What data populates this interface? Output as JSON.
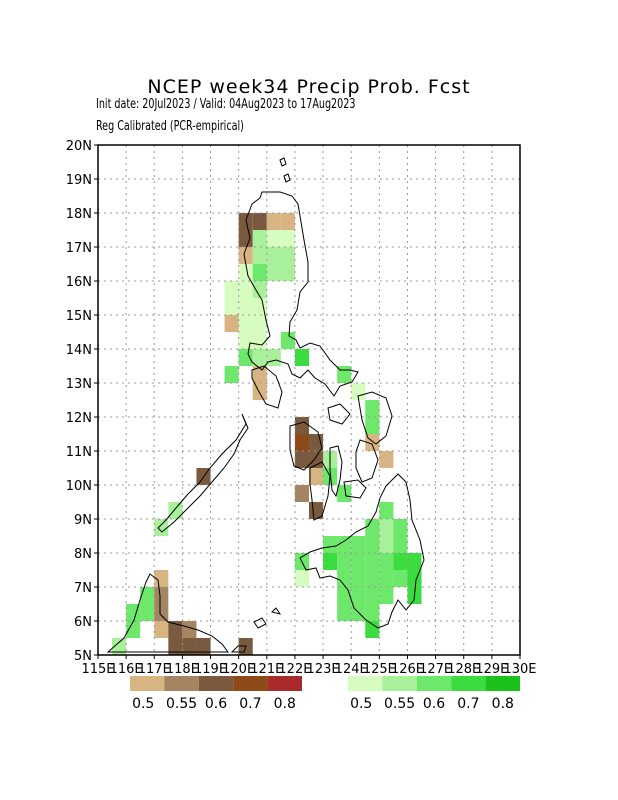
{
  "header": {
    "title": "NCEP week34 Precip Prob. Fcst",
    "line1": "Init date: 20Jul2023 / Valid: 04Aug2023 to 17Aug2023",
    "line2": "Reg Calibrated (PCR-empirical)"
  },
  "map": {
    "projection": "lat-lon",
    "lon_range": [
      115,
      130
    ],
    "lat_range": [
      5,
      20
    ],
    "grid": true,
    "lat_labels": [
      "5N",
      "6N",
      "7N",
      "8N",
      "9N",
      "10N",
      "11N",
      "12N",
      "13N",
      "14N",
      "15N",
      "16N",
      "17N",
      "18N",
      "19N",
      "20N"
    ],
    "lon_labels": [
      "115E",
      "116E",
      "117E",
      "118E",
      "119E",
      "120E",
      "121E",
      "122E",
      "123E",
      "124E",
      "125E",
      "126E",
      "127E",
      "128E",
      "129E",
      "130E"
    ],
    "cells": [
      {
        "lon": 120.0,
        "lat": 17.5,
        "p": 0.6,
        "t": "below"
      },
      {
        "lon": 120.5,
        "lat": 17.5,
        "p": 0.6,
        "t": "below"
      },
      {
        "lon": 121.0,
        "lat": 17.5,
        "p": 0.5,
        "t": "below"
      },
      {
        "lon": 121.5,
        "lat": 17.5,
        "p": 0.5,
        "t": "below"
      },
      {
        "lon": 120.0,
        "lat": 17.0,
        "p": 0.6,
        "t": "below"
      },
      {
        "lon": 120.5,
        "lat": 17.0,
        "p": 0.55,
        "t": "above"
      },
      {
        "lon": 121.0,
        "lat": 17.0,
        "p": 0.5,
        "t": "above"
      },
      {
        "lon": 121.5,
        "lat": 17.0,
        "p": 0.5,
        "t": "above"
      },
      {
        "lon": 120.0,
        "lat": 16.5,
        "p": 0.5,
        "t": "below"
      },
      {
        "lon": 120.5,
        "lat": 16.5,
        "p": 0.55,
        "t": "above"
      },
      {
        "lon": 121.0,
        "lat": 16.5,
        "p": 0.55,
        "t": "above"
      },
      {
        "lon": 121.5,
        "lat": 16.5,
        "p": 0.55,
        "t": "above"
      },
      {
        "lon": 120.0,
        "lat": 16.0,
        "p": 0.5,
        "t": "above"
      },
      {
        "lon": 120.5,
        "lat": 16.0,
        "p": 0.6,
        "t": "above"
      },
      {
        "lon": 121.0,
        "lat": 16.0,
        "p": 0.55,
        "t": "above"
      },
      {
        "lon": 121.5,
        "lat": 16.0,
        "p": 0.55,
        "t": "above"
      },
      {
        "lon": 119.5,
        "lat": 15.5,
        "p": 0.5,
        "t": "above"
      },
      {
        "lon": 120.0,
        "lat": 15.5,
        "p": 0.5,
        "t": "above"
      },
      {
        "lon": 120.5,
        "lat": 15.5,
        "p": 0.55,
        "t": "above"
      },
      {
        "lon": 119.5,
        "lat": 15.0,
        "p": 0.5,
        "t": "above"
      },
      {
        "lon": 120.0,
        "lat": 15.0,
        "p": 0.5,
        "t": "above"
      },
      {
        "lon": 120.5,
        "lat": 15.0,
        "p": 0.5,
        "t": "above"
      },
      {
        "lon": 119.5,
        "lat": 14.5,
        "p": 0.5,
        "t": "below"
      },
      {
        "lon": 120.0,
        "lat": 14.5,
        "p": 0.5,
        "t": "above"
      },
      {
        "lon": 120.5,
        "lat": 14.5,
        "p": 0.5,
        "t": "above"
      },
      {
        "lon": 120.0,
        "lat": 14.0,
        "p": 0.5,
        "t": "above"
      },
      {
        "lon": 120.5,
        "lat": 14.0,
        "p": 0.5,
        "t": "above"
      },
      {
        "lon": 121.5,
        "lat": 14.0,
        "p": 0.6,
        "t": "above"
      },
      {
        "lon": 120.0,
        "lat": 13.5,
        "p": 0.6,
        "t": "above"
      },
      {
        "lon": 120.5,
        "lat": 13.5,
        "p": 0.55,
        "t": "above"
      },
      {
        "lon": 121.0,
        "lat": 13.5,
        "p": 0.55,
        "t": "above"
      },
      {
        "lon": 122.0,
        "lat": 13.5,
        "p": 0.7,
        "t": "above"
      },
      {
        "lon": 119.5,
        "lat": 13.0,
        "p": 0.6,
        "t": "above"
      },
      {
        "lon": 120.5,
        "lat": 13.0,
        "p": 0.5,
        "t": "below"
      },
      {
        "lon": 123.5,
        "lat": 13.0,
        "p": 0.6,
        "t": "above"
      },
      {
        "lon": 120.5,
        "lat": 12.5,
        "p": 0.5,
        "t": "below"
      },
      {
        "lon": 124.0,
        "lat": 12.5,
        "p": 0.5,
        "t": "above"
      },
      {
        "lon": 124.5,
        "lat": 12.0,
        "p": 0.6,
        "t": "above"
      },
      {
        "lon": 124.5,
        "lat": 11.5,
        "p": 0.6,
        "t": "above"
      },
      {
        "lon": 122.0,
        "lat": 11.5,
        "p": 0.6,
        "t": "below"
      },
      {
        "lon": 122.0,
        "lat": 11.0,
        "p": 0.7,
        "t": "below"
      },
      {
        "lon": 122.5,
        "lat": 11.0,
        "p": 0.6,
        "t": "below"
      },
      {
        "lon": 124.5,
        "lat": 11.0,
        "p": 0.5,
        "t": "below"
      },
      {
        "lon": 122.0,
        "lat": 10.5,
        "p": 0.6,
        "t": "below"
      },
      {
        "lon": 122.5,
        "lat": 10.5,
        "p": 0.6,
        "t": "below"
      },
      {
        "lon": 123.0,
        "lat": 10.5,
        "p": 0.55,
        "t": "above"
      },
      {
        "lon": 125.0,
        "lat": 10.5,
        "p": 0.5,
        "t": "below"
      },
      {
        "lon": 122.5,
        "lat": 10.0,
        "p": 0.5,
        "t": "below"
      },
      {
        "lon": 123.0,
        "lat": 10.0,
        "p": 0.6,
        "t": "above"
      },
      {
        "lon": 118.5,
        "lat": 10.0,
        "p": 0.6,
        "t": "below"
      },
      {
        "lon": 122.0,
        "lat": 9.5,
        "p": 0.55,
        "t": "below"
      },
      {
        "lon": 123.5,
        "lat": 9.5,
        "p": 0.6,
        "t": "above"
      },
      {
        "lon": 122.5,
        "lat": 9.0,
        "p": 0.6,
        "t": "below"
      },
      {
        "lon": 117.5,
        "lat": 9.0,
        "p": 0.55,
        "t": "above"
      },
      {
        "lon": 125.0,
        "lat": 9.0,
        "p": 0.6,
        "t": "above"
      },
      {
        "lon": 117.0,
        "lat": 8.5,
        "p": 0.55,
        "t": "above"
      },
      {
        "lon": 124.5,
        "lat": 8.5,
        "p": 0.6,
        "t": "above"
      },
      {
        "lon": 125.0,
        "lat": 8.5,
        "p": 0.55,
        "t": "above"
      },
      {
        "lon": 125.5,
        "lat": 8.5,
        "p": 0.6,
        "t": "above"
      },
      {
        "lon": 123.0,
        "lat": 8.0,
        "p": 0.6,
        "t": "above"
      },
      {
        "lon": 123.5,
        "lat": 8.0,
        "p": 0.6,
        "t": "above"
      },
      {
        "lon": 124.0,
        "lat": 8.0,
        "p": 0.6,
        "t": "above"
      },
      {
        "lon": 124.5,
        "lat": 8.0,
        "p": 0.6,
        "t": "above"
      },
      {
        "lon": 125.0,
        "lat": 8.0,
        "p": 0.55,
        "t": "above"
      },
      {
        "lon": 125.5,
        "lat": 8.0,
        "p": 0.6,
        "t": "above"
      },
      {
        "lon": 122.0,
        "lat": 7.5,
        "p": 0.6,
        "t": "above"
      },
      {
        "lon": 123.0,
        "lat": 7.5,
        "p": 0.7,
        "t": "above"
      },
      {
        "lon": 123.5,
        "lat": 7.5,
        "p": 0.6,
        "t": "above"
      },
      {
        "lon": 124.0,
        "lat": 7.5,
        "p": 0.6,
        "t": "above"
      },
      {
        "lon": 124.5,
        "lat": 7.5,
        "p": 0.6,
        "t": "above"
      },
      {
        "lon": 125.0,
        "lat": 7.5,
        "p": 0.6,
        "t": "above"
      },
      {
        "lon": 125.5,
        "lat": 7.5,
        "p": 0.7,
        "t": "above"
      },
      {
        "lon": 126.0,
        "lat": 7.5,
        "p": 0.7,
        "t": "above"
      },
      {
        "lon": 122.0,
        "lat": 7.0,
        "p": 0.5,
        "t": "above"
      },
      {
        "lon": 123.5,
        "lat": 7.0,
        "p": 0.6,
        "t": "above"
      },
      {
        "lon": 124.0,
        "lat": 7.0,
        "p": 0.6,
        "t": "above"
      },
      {
        "lon": 124.5,
        "lat": 7.0,
        "p": 0.6,
        "t": "above"
      },
      {
        "lon": 125.0,
        "lat": 7.0,
        "p": 0.6,
        "t": "above"
      },
      {
        "lon": 125.5,
        "lat": 7.0,
        "p": 0.6,
        "t": "above"
      },
      {
        "lon": 126.0,
        "lat": 7.0,
        "p": 0.7,
        "t": "above"
      },
      {
        "lon": 117.0,
        "lat": 7.0,
        "p": 0.5,
        "t": "below"
      },
      {
        "lon": 116.5,
        "lat": 6.5,
        "p": 0.6,
        "t": "above"
      },
      {
        "lon": 117.0,
        "lat": 6.5,
        "p": 0.55,
        "t": "below"
      },
      {
        "lon": 123.5,
        "lat": 6.5,
        "p": 0.6,
        "t": "above"
      },
      {
        "lon": 124.0,
        "lat": 6.5,
        "p": 0.6,
        "t": "above"
      },
      {
        "lon": 124.5,
        "lat": 6.5,
        "p": 0.6,
        "t": "above"
      },
      {
        "lon": 125.0,
        "lat": 6.5,
        "p": 0.6,
        "t": "above"
      },
      {
        "lon": 126.0,
        "lat": 6.5,
        "p": 0.7,
        "t": "above"
      },
      {
        "lon": 116.0,
        "lat": 6.0,
        "p": 0.6,
        "t": "above"
      },
      {
        "lon": 116.5,
        "lat": 6.0,
        "p": 0.6,
        "t": "above"
      },
      {
        "lon": 117.0,
        "lat": 6.0,
        "p": 0.55,
        "t": "below"
      },
      {
        "lon": 123.5,
        "lat": 6.0,
        "p": 0.6,
        "t": "above"
      },
      {
        "lon": 124.0,
        "lat": 6.0,
        "p": 0.6,
        "t": "above"
      },
      {
        "lon": 124.5,
        "lat": 6.0,
        "p": 0.6,
        "t": "above"
      },
      {
        "lon": 116.0,
        "lat": 5.5,
        "p": 0.6,
        "t": "above"
      },
      {
        "lon": 117.0,
        "lat": 5.5,
        "p": 0.5,
        "t": "below"
      },
      {
        "lon": 117.5,
        "lat": 5.5,
        "p": 0.6,
        "t": "below"
      },
      {
        "lon": 118.0,
        "lat": 5.5,
        "p": 0.55,
        "t": "below"
      },
      {
        "lon": 124.5,
        "lat": 5.5,
        "p": 0.7,
        "t": "above"
      },
      {
        "lon": 115.5,
        "lat": 5.0,
        "p": 0.55,
        "t": "above"
      },
      {
        "lon": 117.5,
        "lat": 5.0,
        "p": 0.6,
        "t": "below"
      },
      {
        "lon": 118.0,
        "lat": 5.0,
        "p": 0.6,
        "t": "below"
      },
      {
        "lon": 118.5,
        "lat": 5.0,
        "p": 0.6,
        "t": "below"
      },
      {
        "lon": 120.0,
        "lat": 5.0,
        "p": 0.6,
        "t": "below"
      }
    ]
  },
  "legend": {
    "below": {
      "labels": [
        "0.5",
        "0.55",
        "0.6",
        "0.7",
        "0.8"
      ],
      "colors": [
        "#d8b483",
        "#a58462",
        "#7a5a3e",
        "#8c4a18",
        "#a82a2a"
      ]
    },
    "above": {
      "labels": [
        "0.5",
        "0.55",
        "0.6",
        "0.7",
        "0.8"
      ],
      "colors": [
        "#d6fcbf",
        "#a8f09a",
        "#6ee86a",
        "#3bdc3f",
        "#1bc21a"
      ]
    }
  }
}
